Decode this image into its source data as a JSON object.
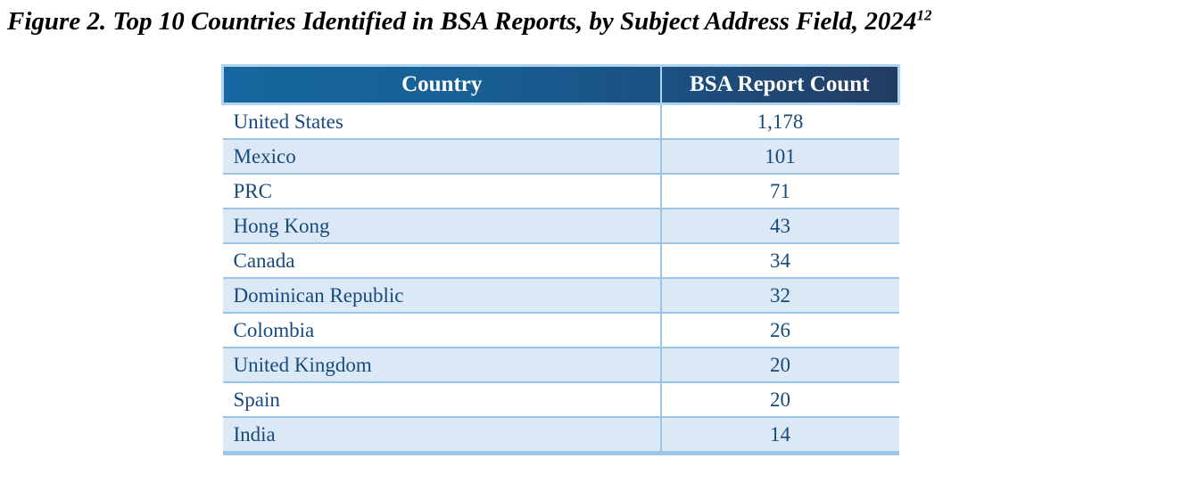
{
  "figure": {
    "title": "Figure 2. Top 10 Countries Identified in BSA Reports, by Subject Address Field, 2024",
    "footnote_marker": "12"
  },
  "table": {
    "columns": [
      "Country",
      "BSA Report Count"
    ],
    "rows": [
      {
        "country": "United States",
        "count": "1,178"
      },
      {
        "country": "Mexico",
        "count": "101"
      },
      {
        "country": "PRC",
        "count": "71"
      },
      {
        "country": "Hong Kong",
        "count": "43"
      },
      {
        "country": "Canada",
        "count": "34"
      },
      {
        "country": "Dominican Republic",
        "count": "32"
      },
      {
        "country": "Colombia",
        "count": "26"
      },
      {
        "country": "United Kingdom",
        "count": "20"
      },
      {
        "country": "Spain",
        "count": "20"
      },
      {
        "country": "India",
        "count": "14"
      }
    ]
  },
  "chart_data": {
    "type": "table",
    "title": "Top 10 Countries Identified in BSA Reports, by Subject Address Field, 2024",
    "categories": [
      "United States",
      "Mexico",
      "PRC",
      "Hong Kong",
      "Canada",
      "Dominican Republic",
      "Colombia",
      "United Kingdom",
      "Spain",
      "India"
    ],
    "values": [
      1178,
      101,
      71,
      43,
      34,
      32,
      26,
      20,
      20,
      14
    ],
    "columns": [
      "Country",
      "BSA Report Count"
    ]
  },
  "colors": {
    "header_gradient_start": "#15689f",
    "header_gradient_end": "#243c63",
    "header_frame_border": "#aed3ed",
    "header_text": "#ffffff",
    "row_alt_background": "#dbe9f7",
    "row_border": "#9dc5e8",
    "body_text": "#17497a",
    "title_text": "#000000"
  }
}
